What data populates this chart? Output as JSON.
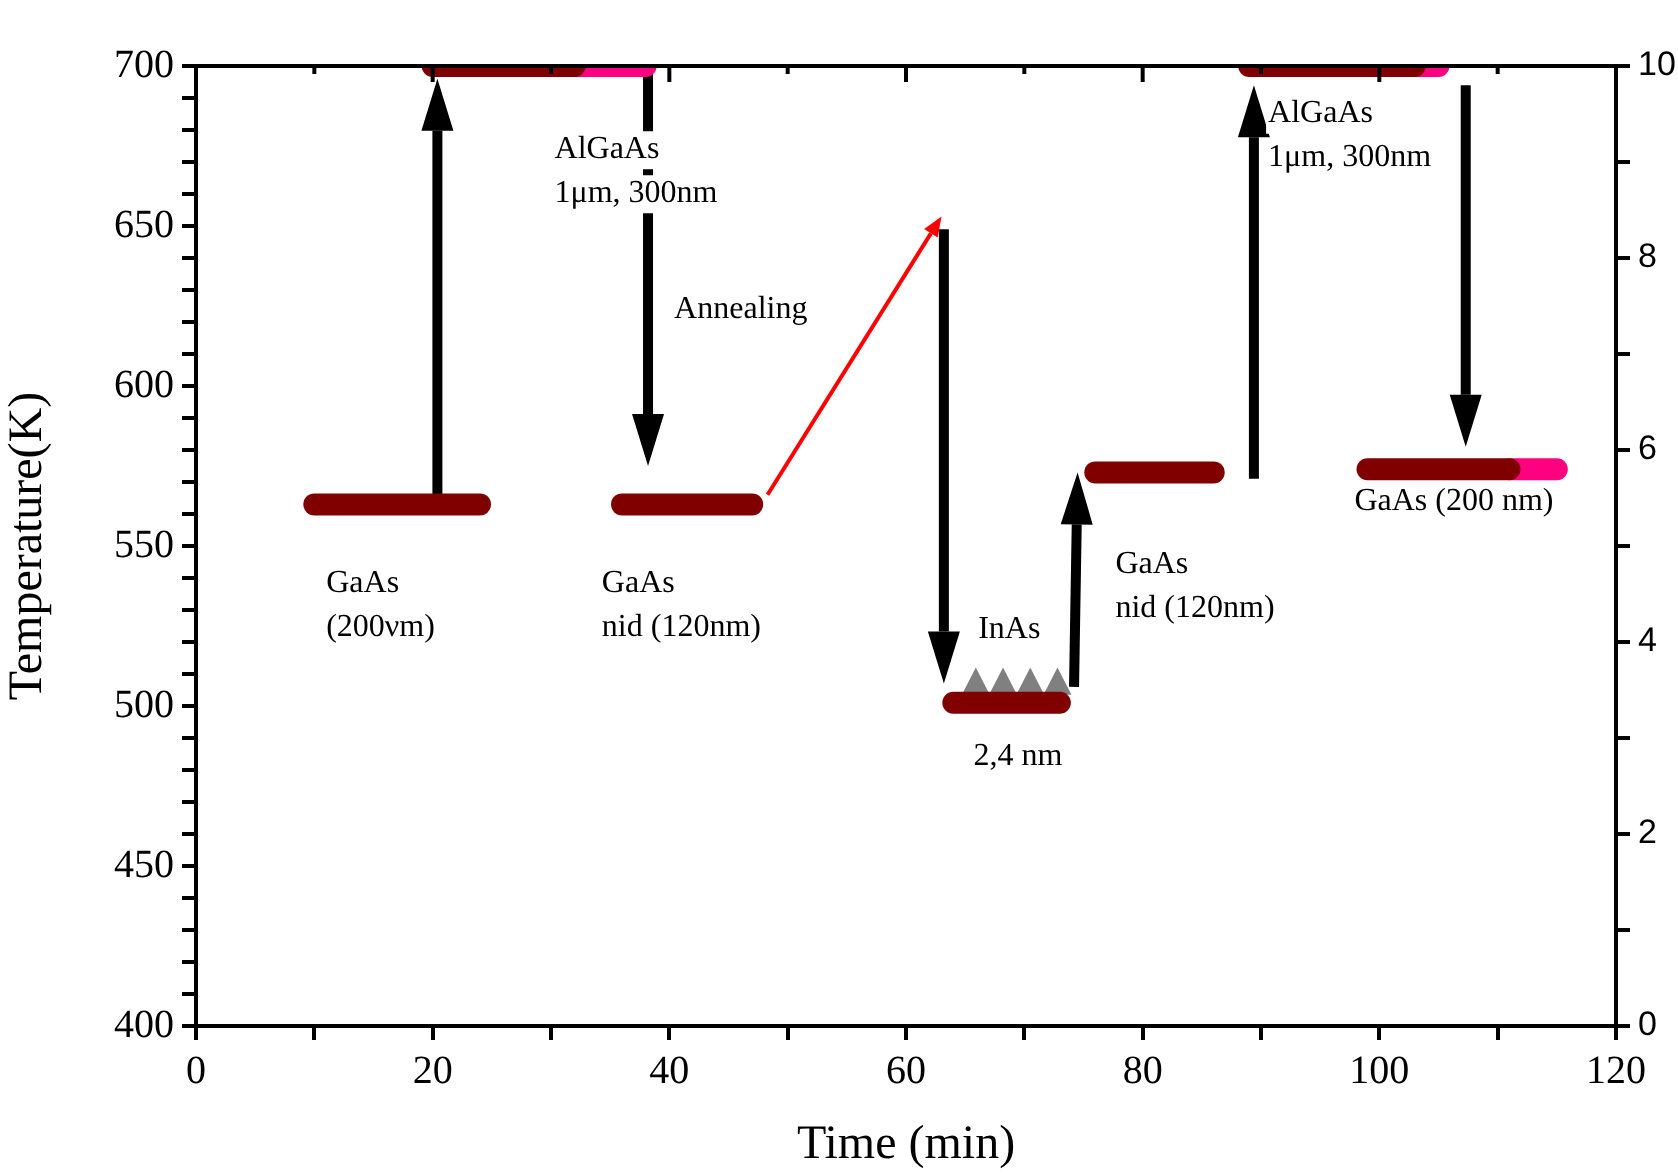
{
  "chart_data": {
    "type": "line",
    "xlabel": "Time (min)",
    "ylabel": "Temperature(K)",
    "xlim": [
      0,
      120
    ],
    "xticks": [
      0,
      {
        "value": 10,
        "label": null
      },
      20,
      {
        "value": 30,
        "label": null
      },
      40,
      {
        "value": 50,
        "label": null
      },
      60,
      {
        "value": 70,
        "label": null
      },
      80,
      {
        "value": 90,
        "label": null
      },
      100,
      {
        "value": 110,
        "label": null
      },
      120
    ],
    "ylim": [
      400,
      700
    ],
    "yticks": [
      400,
      {
        "value": 410,
        "label": null
      },
      {
        "value": 420,
        "label": null
      },
      {
        "value": 430,
        "label": null
      },
      {
        "value": 440,
        "label": null
      },
      450,
      {
        "value": 460,
        "label": null
      },
      {
        "value": 470,
        "label": null
      },
      {
        "value": 480,
        "label": null
      },
      {
        "value": 490,
        "label": null
      },
      500,
      {
        "value": 510,
        "label": null
      },
      {
        "value": 520,
        "label": null
      },
      {
        "value": 530,
        "label": null
      },
      {
        "value": 540,
        "label": null
      },
      550,
      {
        "value": 560,
        "label": null
      },
      {
        "value": 570,
        "label": null
      },
      {
        "value": 580,
        "label": null
      },
      {
        "value": 590,
        "label": null
      },
      600,
      {
        "value": 610,
        "label": null
      },
      {
        "value": 620,
        "label": null
      },
      {
        "value": 630,
        "label": null
      },
      {
        "value": 640,
        "label": null
      },
      650,
      {
        "value": 660,
        "label": null
      },
      {
        "value": 670,
        "label": null
      },
      {
        "value": 680,
        "label": null
      },
      {
        "value": 690,
        "label": null
      },
      700
    ],
    "y2lim": [
      0,
      10
    ],
    "y2ticks": [
      0,
      {
        "value": 1,
        "label": null
      },
      2,
      {
        "value": 3,
        "label": null
      },
      4,
      {
        "value": 5,
        "label": null
      },
      6,
      {
        "value": 7,
        "label": null
      },
      8,
      {
        "value": 9,
        "label": null
      },
      10
    ],
    "grid": false,
    "legend": false,
    "marker": "none",
    "line_style": "solid",
    "series": [
      {
        "color": "#800000",
        "x": [
          10,
          24
        ],
        "values": [
          563,
          563
        ]
      },
      {
        "color": "#800000",
        "x": [
          20,
          32
        ],
        "values": [
          700,
          700
        ]
      },
      {
        "color": "#ff0080",
        "x": [
          32,
          38
        ],
        "values": [
          700,
          700
        ]
      },
      {
        "color": "#800000",
        "x": [
          36,
          47
        ],
        "values": [
          563,
          563
        ]
      },
      {
        "color": "#800000",
        "x": [
          64,
          73
        ],
        "values": [
          501,
          501
        ]
      },
      {
        "color": "#800000",
        "x": [
          76,
          86
        ],
        "values": [
          573,
          573
        ]
      },
      {
        "color": "#800000",
        "x": [
          89,
          103
        ],
        "values": [
          700,
          700
        ]
      },
      {
        "color": "#ff0080",
        "x": [
          103,
          105
        ],
        "values": [
          700,
          700
        ]
      },
      {
        "color": "#800000",
        "x": [
          99,
          111
        ],
        "values": [
          574,
          574
        ]
      },
      {
        "color": "#ff0080",
        "x": [
          111,
          115
        ],
        "values": [
          574,
          574
        ]
      }
    ],
    "annotations": [
      "GaAs\n(200νm)",
      "AlGaAs\n1μm, 300nm",
      "Annealing",
      "GaAs\nnid (120nm)",
      "InAs",
      "2,4 nm",
      "GaAs\nnid (120nm)",
      "AlGaAs\n1μm, 300nm",
      "GaAs (200 nm)"
    ]
  }
}
